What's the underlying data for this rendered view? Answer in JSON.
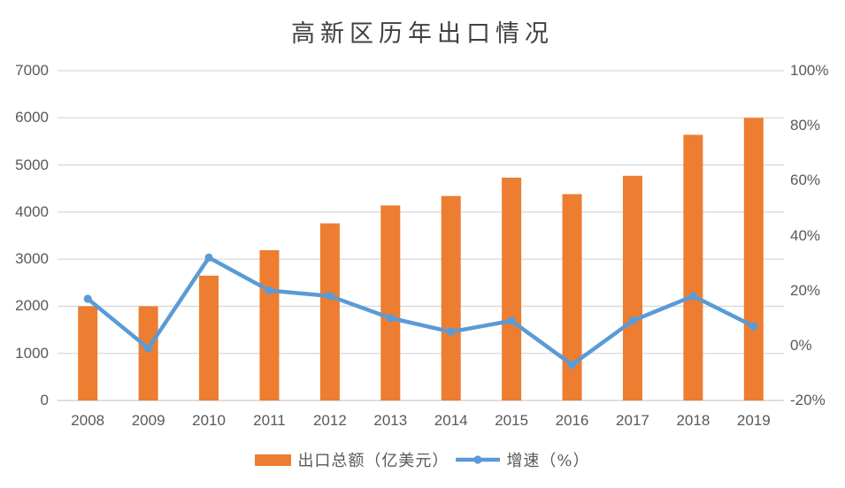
{
  "chart_data": {
    "type": "bar+line-combo",
    "title": "高新区历年出口情况",
    "categories": [
      "2008",
      "2009",
      "2010",
      "2011",
      "2012",
      "2013",
      "2014",
      "2015",
      "2016",
      "2017",
      "2018",
      "2019"
    ],
    "series": [
      {
        "name": "出口总额（亿美元）",
        "type": "bar",
        "axis": "left",
        "color": "#ED7D31",
        "values": [
          2000,
          2000,
          2650,
          3190,
          3760,
          4140,
          4340,
          4730,
          4380,
          4770,
          5640,
          6000
        ]
      },
      {
        "name": "增速（%）",
        "type": "line",
        "axis": "right",
        "color": "#5B9BD5",
        "values": [
          17,
          -1,
          32,
          20,
          18,
          10,
          5,
          9,
          -7,
          9,
          18,
          7
        ]
      }
    ],
    "left_axis": {
      "min": 0,
      "max": 7000,
      "step": 1000,
      "ticks": [
        "0",
        "1000",
        "2000",
        "3000",
        "4000",
        "5000",
        "6000",
        "7000"
      ]
    },
    "right_axis": {
      "min": -20,
      "max": 100,
      "step": 20,
      "ticks": [
        "-20%",
        "0%",
        "20%",
        "40%",
        "60%",
        "80%",
        "100%"
      ]
    },
    "grid": true,
    "legend_position": "bottom",
    "colors": {
      "gridline": "#D9D9D9",
      "baseline": "#C9C9C9",
      "tick_text": "#595959",
      "title_text": "#404040",
      "background": "#FFFFFF"
    }
  }
}
